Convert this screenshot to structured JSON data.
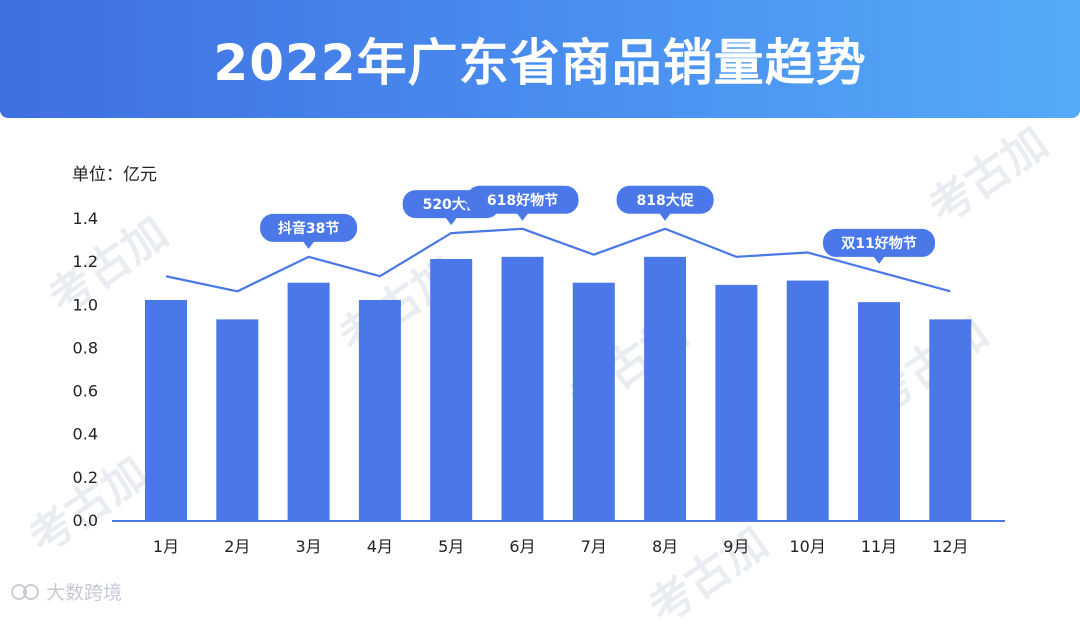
{
  "header": {
    "title": "2022年广东省商品销量趋势"
  },
  "watermark": {
    "text": "考古加"
  },
  "footer": {
    "logo_text": "大数跨境"
  },
  "colors": {
    "bar": "#4a78e8",
    "line": "#4a78e8",
    "banner_start": "#3f6fe0",
    "banner_end": "#55aaf8",
    "callout": "#4a78e8"
  },
  "chart_data": {
    "type": "bar",
    "ylabel": "单位：亿元",
    "ylim": [
      0,
      1.4
    ],
    "yticks": [
      "0.0",
      "0.2",
      "0.4",
      "0.6",
      "0.8",
      "1.0",
      "1.2",
      "1.4"
    ],
    "categories": [
      "1月",
      "2月",
      "3月",
      "4月",
      "5月",
      "6月",
      "7月",
      "8月",
      "9月",
      "10月",
      "11月",
      "12月"
    ],
    "series": [
      {
        "type": "bar",
        "values": [
          1.02,
          0.93,
          1.1,
          1.02,
          1.21,
          1.22,
          1.1,
          1.22,
          1.09,
          1.11,
          1.01,
          0.93
        ]
      },
      {
        "type": "line",
        "values": [
          1.13,
          1.06,
          1.22,
          1.13,
          1.33,
          1.35,
          1.23,
          1.35,
          1.22,
          1.24,
          1.15,
          1.06
        ]
      }
    ],
    "annotations": [
      {
        "text": "抖音38节",
        "month_index": 2
      },
      {
        "text": "520大促",
        "month_index": 4
      },
      {
        "text": "618好物节",
        "month_index": 5
      },
      {
        "text": "818大促",
        "month_index": 7
      },
      {
        "text": "双11好物节",
        "month_index": 10
      }
    ],
    "grid": false
  }
}
